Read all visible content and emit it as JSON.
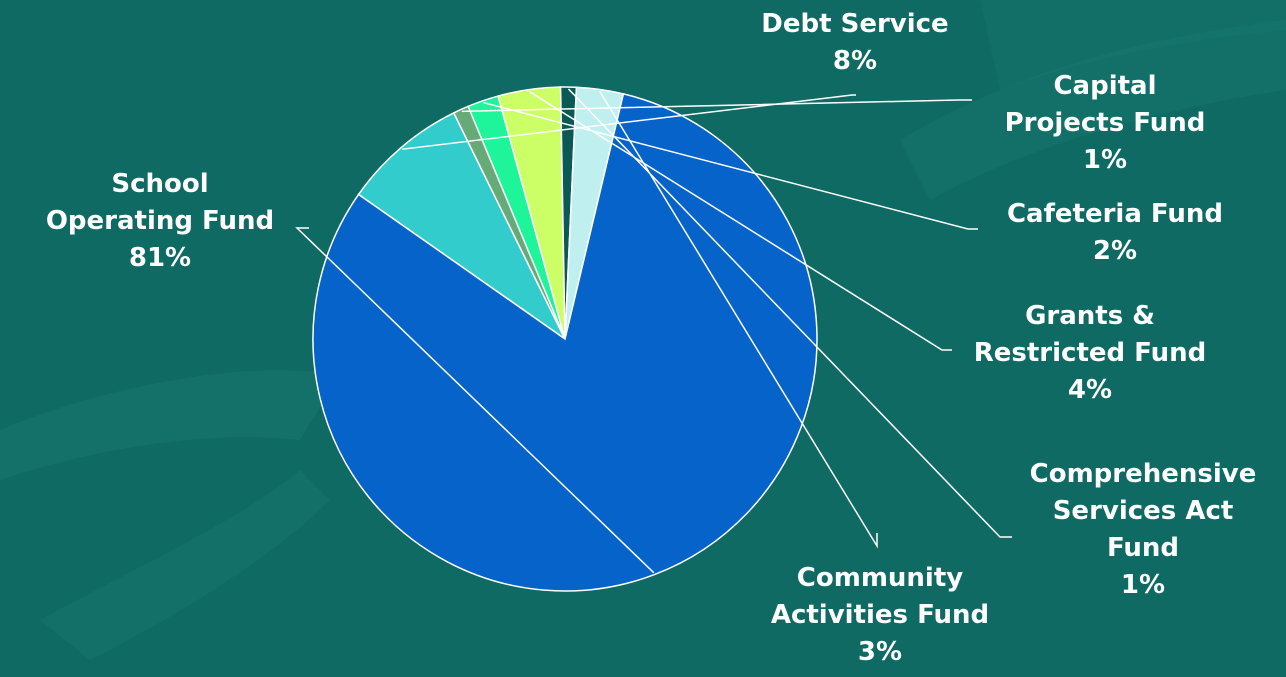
{
  "chart_data": {
    "type": "pie",
    "title": "",
    "slices": [
      {
        "label_lines": [
          "School",
          "Operating Fund"
        ],
        "value_text": "81%",
        "value": 81,
        "color": "#0563c9"
      },
      {
        "label_lines": [
          "Debt Service"
        ],
        "value_text": "8%",
        "value": 8,
        "color": "#33cccc"
      },
      {
        "label_lines": [
          "Capital",
          "Projects Fund"
        ],
        "value_text": "1%",
        "value": 1,
        "color": "#66aa77"
      },
      {
        "label_lines": [
          "Cafeteria Fund"
        ],
        "value_text": "2%",
        "value": 2,
        "color": "#1ef59a"
      },
      {
        "label_lines": [
          "Grants &",
          "Restricted Fund"
        ],
        "value_text": "4%",
        "value": 4,
        "color": "#ccff66"
      },
      {
        "label_lines": [
          "Comprehensive",
          "Services Act",
          "Fund"
        ],
        "value_text": "1%",
        "value": 1,
        "color": "#0b5955"
      },
      {
        "label_lines": [
          "Community",
          "Activities Fund"
        ],
        "value_text": "3%",
        "value": 3,
        "color": "#bff0ef"
      }
    ]
  }
}
